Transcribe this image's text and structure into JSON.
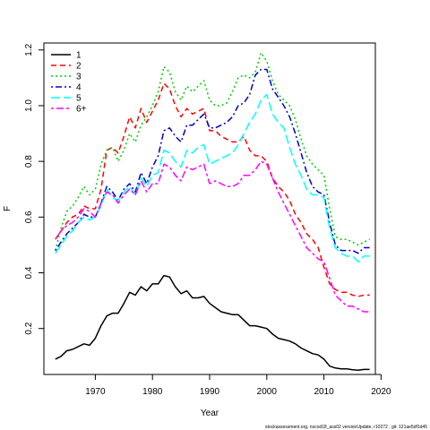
{
  "chart_data": {
    "type": "line",
    "title": "",
    "xlabel": "Year",
    "ylabel": "F",
    "xlim": [
      1961,
      2019
    ],
    "ylim": [
      0.035,
      1.225
    ],
    "x_ticks": [
      1970,
      1980,
      1990,
      2000,
      2010,
      2020
    ],
    "y_ticks": [
      0.2,
      0.4,
      0.6,
      0.8,
      1.0,
      1.2
    ],
    "grid": false,
    "legend_position": "top-left",
    "x": [
      1963,
      1964,
      1965,
      1966,
      1967,
      1968,
      1969,
      1970,
      1971,
      1972,
      1973,
      1974,
      1975,
      1976,
      1977,
      1978,
      1979,
      1980,
      1981,
      1982,
      1983,
      1984,
      1985,
      1986,
      1987,
      1988,
      1989,
      1990,
      1991,
      1992,
      1993,
      1994,
      1995,
      1996,
      1997,
      1998,
      1999,
      2000,
      2001,
      2002,
      2003,
      2004,
      2005,
      2006,
      2007,
      2008,
      2009,
      2010,
      2011,
      2012,
      2013,
      2014,
      2015,
      2016,
      2017,
      2018
    ],
    "series": [
      {
        "name": "1",
        "color": "#000000",
        "dash": "solid",
        "values": [
          0.09,
          0.1,
          0.12,
          0.125,
          0.135,
          0.145,
          0.14,
          0.165,
          0.21,
          0.245,
          0.255,
          0.255,
          0.29,
          0.33,
          0.32,
          0.35,
          0.335,
          0.36,
          0.36,
          0.39,
          0.385,
          0.35,
          0.325,
          0.335,
          0.31,
          0.31,
          0.315,
          0.29,
          0.275,
          0.26,
          0.255,
          0.25,
          0.25,
          0.23,
          0.21,
          0.21,
          0.205,
          0.2,
          0.18,
          0.165,
          0.16,
          0.155,
          0.145,
          0.13,
          0.12,
          0.11,
          0.105,
          0.09,
          0.065,
          0.058,
          0.055,
          0.055,
          0.052,
          0.05,
          0.053,
          0.053
        ]
      },
      {
        "name": "2",
        "color": "#ff0000",
        "dash": "dashed",
        "values": [
          0.52,
          0.55,
          0.58,
          0.6,
          0.61,
          0.64,
          0.63,
          0.63,
          0.7,
          0.84,
          0.85,
          0.83,
          0.89,
          0.96,
          0.92,
          0.99,
          0.94,
          0.98,
          1.02,
          1.08,
          1.06,
          1.0,
          0.96,
          0.99,
          0.97,
          0.98,
          0.99,
          0.91,
          0.91,
          0.89,
          0.88,
          0.87,
          0.87,
          0.89,
          0.84,
          0.82,
          0.82,
          0.8,
          0.74,
          0.71,
          0.69,
          0.66,
          0.61,
          0.58,
          0.54,
          0.52,
          0.49,
          0.42,
          0.36,
          0.34,
          0.33,
          0.33,
          0.32,
          0.315,
          0.32,
          0.32
        ]
      },
      {
        "name": "3",
        "color": "#00cd00",
        "dash": "dotted",
        "values": [
          0.48,
          0.56,
          0.62,
          0.64,
          0.67,
          0.71,
          0.68,
          0.7,
          0.79,
          0.84,
          0.85,
          0.8,
          0.84,
          0.9,
          0.87,
          0.93,
          0.96,
          1.0,
          1.05,
          1.14,
          1.12,
          1.05,
          1.02,
          1.07,
          1.05,
          1.07,
          1.09,
          1.02,
          1.0,
          1.0,
          1.01,
          1.05,
          1.1,
          1.11,
          1.1,
          1.12,
          1.19,
          1.16,
          1.09,
          1.04,
          1.02,
          1.0,
          0.95,
          0.88,
          0.82,
          0.79,
          0.77,
          0.75,
          0.63,
          0.53,
          0.52,
          0.52,
          0.51,
          0.5,
          0.51,
          0.52
        ]
      },
      {
        "name": "4",
        "color": "#0000cd",
        "dash": "dashdot",
        "values": [
          0.48,
          0.51,
          0.54,
          0.56,
          0.58,
          0.61,
          0.6,
          0.6,
          0.65,
          0.71,
          0.69,
          0.66,
          0.7,
          0.72,
          0.69,
          0.76,
          0.72,
          0.78,
          0.82,
          0.91,
          0.92,
          0.89,
          0.87,
          0.93,
          0.93,
          0.95,
          0.97,
          0.92,
          0.92,
          0.93,
          0.94,
          0.96,
          1.0,
          1.01,
          1.04,
          1.11,
          1.13,
          1.13,
          1.06,
          1.03,
          1.0,
          0.96,
          0.9,
          0.83,
          0.76,
          0.71,
          0.69,
          0.68,
          0.58,
          0.5,
          0.48,
          0.48,
          0.48,
          0.47,
          0.49,
          0.49
        ]
      },
      {
        "name": "5",
        "color": "#00ffff",
        "dash": "longdash",
        "values": [
          0.47,
          0.5,
          0.53,
          0.55,
          0.58,
          0.6,
          0.59,
          0.6,
          0.64,
          0.7,
          0.67,
          0.66,
          0.69,
          0.71,
          0.68,
          0.74,
          0.71,
          0.75,
          0.76,
          0.84,
          0.83,
          0.8,
          0.78,
          0.84,
          0.83,
          0.85,
          0.86,
          0.79,
          0.8,
          0.81,
          0.82,
          0.83,
          0.86,
          0.9,
          0.94,
          0.97,
          1.02,
          1.04,
          0.97,
          0.94,
          0.92,
          0.85,
          0.79,
          0.75,
          0.7,
          0.68,
          0.68,
          0.67,
          0.56,
          0.49,
          0.47,
          0.46,
          0.46,
          0.44,
          0.46,
          0.46
        ]
      },
      {
        "name": "6+",
        "color": "#ff00ff",
        "dash": "twodash",
        "values": [
          0.52,
          0.55,
          0.57,
          0.58,
          0.6,
          0.63,
          0.62,
          0.6,
          0.65,
          0.69,
          0.68,
          0.65,
          0.68,
          0.7,
          0.68,
          0.73,
          0.69,
          0.72,
          0.72,
          0.79,
          0.78,
          0.75,
          0.73,
          0.78,
          0.77,
          0.78,
          0.79,
          0.72,
          0.73,
          0.72,
          0.71,
          0.71,
          0.72,
          0.75,
          0.75,
          0.77,
          0.8,
          0.79,
          0.74,
          0.69,
          0.65,
          0.61,
          0.57,
          0.53,
          0.49,
          0.47,
          0.45,
          0.44,
          0.38,
          0.32,
          0.3,
          0.28,
          0.28,
          0.27,
          0.26,
          0.26
        ]
      }
    ]
  },
  "footnote": "stockassessment.org, nscod18_ass02  versionUpdate, r10272 ,  git: 121ae5df1d45"
}
